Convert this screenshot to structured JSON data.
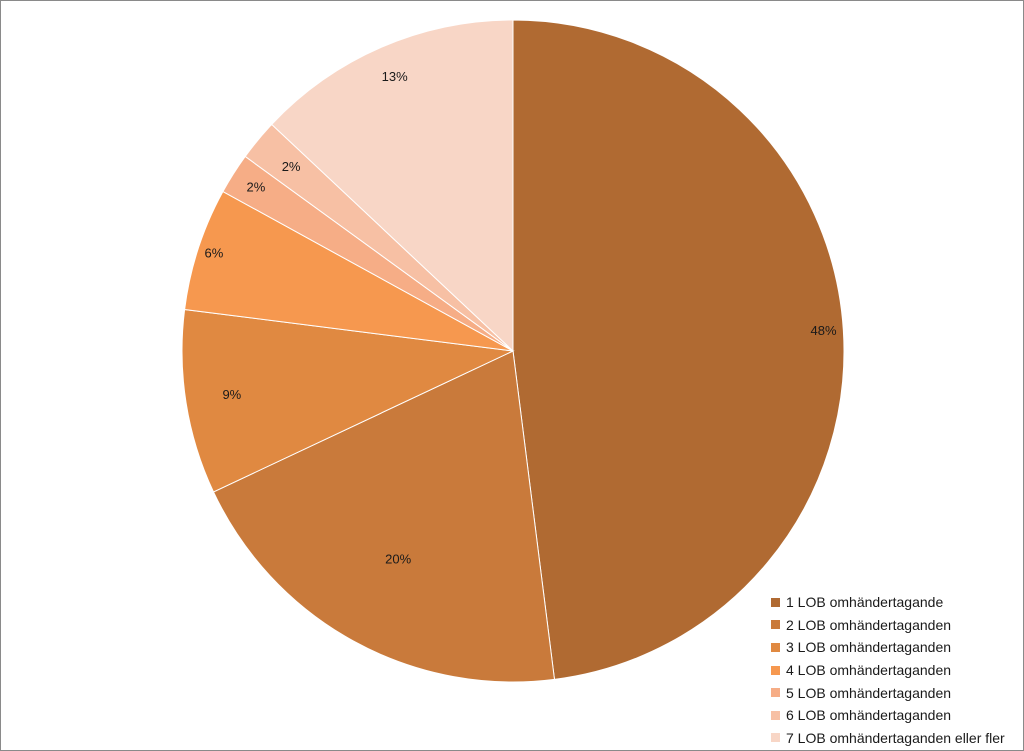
{
  "chart_data": {
    "type": "pie",
    "title": "",
    "start_angle_deg": 0,
    "direction": "clockwise",
    "legend_position": "bottom-right",
    "slices": [
      {
        "label": "1 LOB omhändertagande",
        "value": 48,
        "value_label": "48%",
        "color": "#B06A32"
      },
      {
        "label": "2 LOB omhändertaganden",
        "value": 20,
        "value_label": "20%",
        "color": "#C97A3B"
      },
      {
        "label": "3 LOB omhändertaganden",
        "value": 9,
        "value_label": "9%",
        "color": "#E08941"
      },
      {
        "label": "4 LOB omhändertaganden",
        "value": 6,
        "value_label": "6%",
        "color": "#F6984F"
      },
      {
        "label": "5 LOB omhändertaganden",
        "value": 2,
        "value_label": "2%",
        "color": "#F6AD86"
      },
      {
        "label": "6 LOB omhändertaganden",
        "value": 2,
        "value_label": "2%",
        "color": "#F7C0A4"
      },
      {
        "label": "7 LOB omhändertaganden eller fler",
        "value": 13,
        "value_label": "13%",
        "color": "#F8D6C6"
      }
    ]
  }
}
